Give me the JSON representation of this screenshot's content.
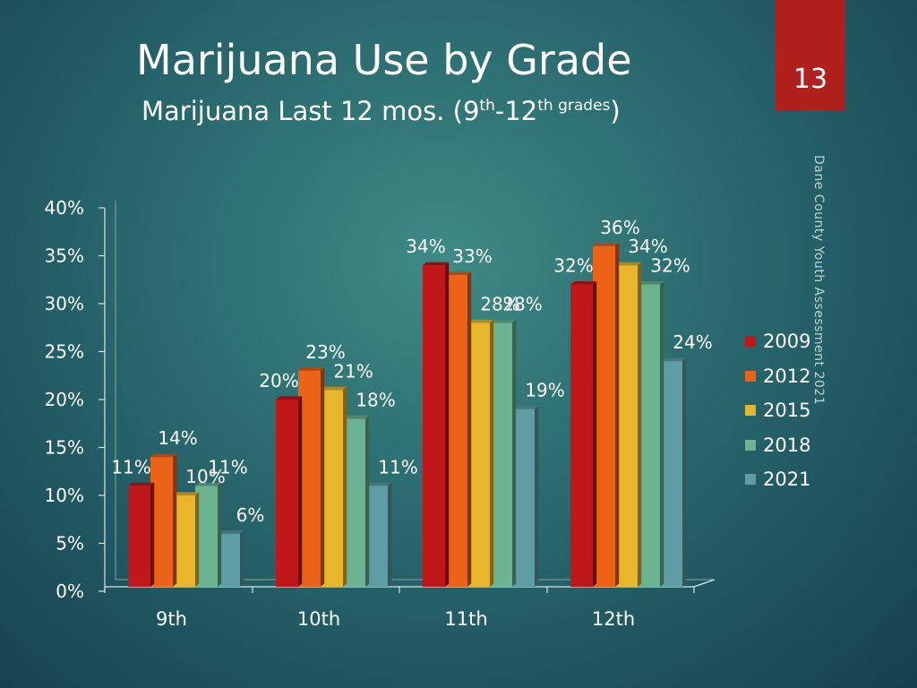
{
  "slide": {
    "title": "Marijuana Use by Grade",
    "subtitle_main": "Marijuana Last 12 mos. (9",
    "subtitle_sup1": "th",
    "subtitle_mid": "-12",
    "subtitle_sup2": "th grades",
    "subtitle_end": ")",
    "page_number": "13",
    "source": "Dane County Youth Assessment 2021"
  },
  "chart_data": {
    "type": "bar",
    "title": "Marijuana Last 12 mos. (9th-12th grades)",
    "xlabel": "",
    "ylabel": "",
    "ylim": [
      0,
      40
    ],
    "y_ticks": [
      "0%",
      "5%",
      "10%",
      "15%",
      "20%",
      "25%",
      "30%",
      "35%",
      "40%"
    ],
    "categories": [
      "9th",
      "10th",
      "11th",
      "12th"
    ],
    "legend_position": "right",
    "series": [
      {
        "name": "2009",
        "color": "#c0171a",
        "values": [
          11,
          20,
          34,
          32
        ],
        "labels": [
          "11%",
          "20%",
          "34%",
          "32%"
        ]
      },
      {
        "name": "2012",
        "color": "#ec6318",
        "values": [
          14,
          23,
          33,
          36
        ],
        "labels": [
          "14%",
          "23%",
          "33%",
          "36%"
        ]
      },
      {
        "name": "2015",
        "color": "#e7b62a",
        "values": [
          10,
          21,
          28,
          34
        ],
        "labels": [
          "10%",
          "21%",
          "28%",
          "34%"
        ]
      },
      {
        "name": "2018",
        "color": "#6cb391",
        "values": [
          11,
          18,
          28,
          32
        ],
        "labels": [
          "11%",
          "18%",
          "28%",
          "32%"
        ]
      },
      {
        "name": "2021",
        "color": "#5e9da3",
        "values": [
          6,
          11,
          19,
          24
        ],
        "labels": [
          "6%",
          "11%",
          "19%",
          "24%"
        ]
      }
    ]
  }
}
